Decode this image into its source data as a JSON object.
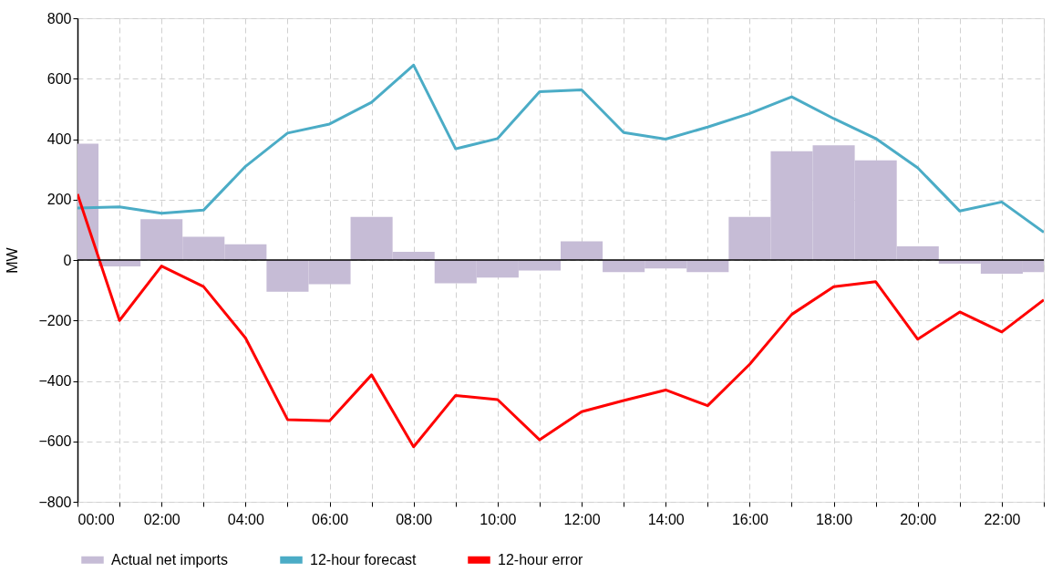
{
  "chart_data": {
    "type": "line",
    "ylabel": "MW",
    "x": [
      0,
      1,
      2,
      3,
      4,
      5,
      6,
      7,
      8,
      9,
      10,
      11,
      12,
      13,
      14,
      15,
      16,
      17,
      18,
      19,
      20,
      21,
      22,
      23
    ],
    "series": [
      {
        "name": "Actual net imports",
        "type": "bar",
        "color": "#c6bcd6",
        "values": [
          385,
          -21,
          135,
          77,
          52,
          -105,
          -80,
          143,
          27,
          -77,
          -58,
          -35,
          62,
          -40,
          -28,
          -40,
          143,
          360,
          380,
          330,
          45,
          -12,
          -45,
          -40
        ]
      },
      {
        "name": "12-hour forecast",
        "color": "#4bacc6",
        "values": [
          172,
          176,
          155,
          165,
          310,
          420,
          450,
          522,
          645,
          368,
          402,
          557,
          563,
          422,
          400,
          440,
          485,
          540,
          468,
          402,
          305,
          162,
          192,
          92
        ]
      },
      {
        "name": "12-hour error",
        "color": "#ff0000",
        "values": [
          218,
          -200,
          -20,
          -88,
          -258,
          -528,
          -532,
          -380,
          -618,
          -448,
          -462,
          -595,
          -502,
          -465,
          -430,
          -482,
          -345,
          -180,
          -88,
          -72,
          -262,
          -172,
          -238,
          -132
        ]
      }
    ],
    "xlim": [
      0,
      23
    ],
    "xticks": [
      {
        "value": 0,
        "label": "00:00"
      },
      {
        "value": 1,
        "label": null
      },
      {
        "value": 2,
        "label": "02:00"
      },
      {
        "value": 3,
        "label": null
      },
      {
        "value": 4,
        "label": "04:00"
      },
      {
        "value": 5,
        "label": null
      },
      {
        "value": 6,
        "label": "06:00"
      },
      {
        "value": 7,
        "label": null
      },
      {
        "value": 8,
        "label": "08:00"
      },
      {
        "value": 9,
        "label": null
      },
      {
        "value": 10,
        "label": "10:00"
      },
      {
        "value": 11,
        "label": null
      },
      {
        "value": 12,
        "label": "12:00"
      },
      {
        "value": 13,
        "label": null
      },
      {
        "value": 14,
        "label": "14:00"
      },
      {
        "value": 15,
        "label": null
      },
      {
        "value": 16,
        "label": "16:00"
      },
      {
        "value": 17,
        "label": null
      },
      {
        "value": 18,
        "label": "18:00"
      },
      {
        "value": 19,
        "label": null
      },
      {
        "value": 20,
        "label": "20:00"
      },
      {
        "value": 21,
        "label": null
      },
      {
        "value": 22,
        "label": "22:00"
      },
      {
        "value": 23,
        "label": null
      }
    ],
    "ylim": [
      -800,
      800
    ],
    "yticks": [
      -800,
      -600,
      -400,
      -200,
      0,
      200,
      400,
      600,
      800
    ],
    "ref_lines": [
      {
        "axis": "y",
        "value": 0,
        "color": "#000000"
      }
    ],
    "grid": true,
    "legend": "bottom",
    "line_style": "solid",
    "marker": "none"
  }
}
